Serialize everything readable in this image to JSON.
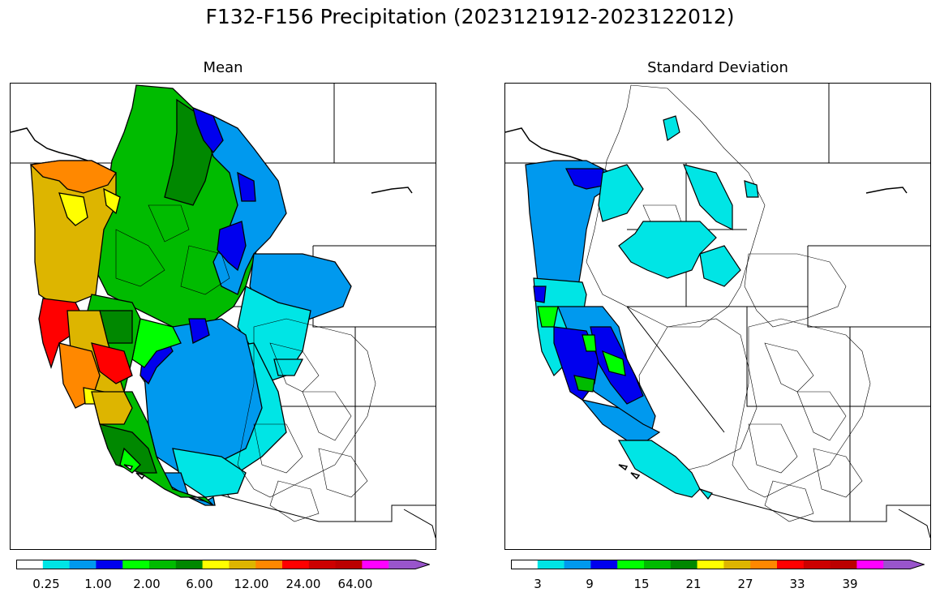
{
  "figure": {
    "title": "F132-F156 Precipitation (2023121912-2023122012)"
  },
  "panels": [
    {
      "title": "Mean",
      "colorbar": {
        "colors": [
          "#ffffff",
          "#00e5e5",
          "#0099ee",
          "#0000ee",
          "#00ff00",
          "#00bb00",
          "#008800",
          "#ffff00",
          "#ddb500",
          "#ff8800",
          "#ff0000",
          "#cc0000",
          "#bb0000",
          "#ff00ff",
          "#9955cc"
        ],
        "tick_labels": [
          "0.25",
          "1.00",
          "2.00",
          "6.00",
          "12.00",
          "24.00",
          "64.00"
        ],
        "extend": "max"
      }
    },
    {
      "title": "Standard Deviation",
      "colorbar": {
        "colors": [
          "#ffffff",
          "#00e5e5",
          "#0099ee",
          "#0000ee",
          "#00ff00",
          "#00bb00",
          "#008800",
          "#ffff00",
          "#ddb500",
          "#ff8800",
          "#ff0000",
          "#cc0000",
          "#bb0000",
          "#ff00ff",
          "#9955cc"
        ],
        "tick_labels": [
          "3",
          "9",
          "15",
          "21",
          "27",
          "33",
          "39"
        ],
        "extend": "max"
      }
    }
  ]
}
